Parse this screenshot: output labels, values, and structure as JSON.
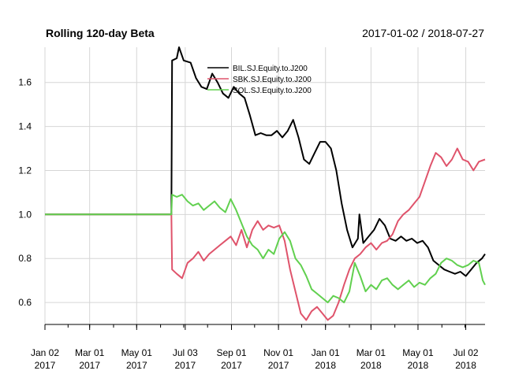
{
  "chart_data": {
    "type": "line",
    "title": "Rolling 120-day Beta",
    "subtitle": "2017-01-02 / 2018-07-27",
    "xlim": [
      "2017-01-02",
      "2018-07-27"
    ],
    "ylim": [
      0.5,
      1.76
    ],
    "yticks": [
      0.6,
      0.8,
      1.0,
      1.2,
      1.4,
      1.6
    ],
    "ytick_labels": [
      "0.6",
      "0.8",
      "1.0",
      "1.2",
      "1.4",
      "1.6"
    ],
    "xticks": [
      {
        "date": "2017-01-02",
        "label": [
          "Jan 02",
          "2017"
        ]
      },
      {
        "date": "2017-03-01",
        "label": [
          "Mar 01",
          "2017"
        ]
      },
      {
        "date": "2017-05-01",
        "label": [
          "May 01",
          "2017"
        ]
      },
      {
        "date": "2017-07-03",
        "label": [
          "Jul 03",
          "2017"
        ]
      },
      {
        "date": "2017-09-01",
        "label": [
          "Sep 01",
          "2017"
        ]
      },
      {
        "date": "2017-11-01",
        "label": [
          "Nov 01",
          "2017"
        ]
      },
      {
        "date": "2018-01-01",
        "label": [
          "Jan 01",
          "2018"
        ]
      },
      {
        "date": "2018-03-01",
        "label": [
          "Mar 01",
          "2018"
        ]
      },
      {
        "date": "2018-05-01",
        "label": [
          "May 01",
          "2018"
        ]
      },
      {
        "date": "2018-07-02",
        "label": [
          "Jul 02",
          "2018"
        ]
      }
    ],
    "grid": true,
    "legend_position": "top-center",
    "series": [
      {
        "name": "BIL.SJ.Equity.to.J200",
        "color": "#000000",
        "points": [
          [
            "2017-01-02",
            1.0
          ],
          [
            "2017-06-15",
            1.0
          ],
          [
            "2017-06-16",
            1.7
          ],
          [
            "2017-06-22",
            1.71
          ],
          [
            "2017-06-25",
            1.76
          ],
          [
            "2017-07-01",
            1.7
          ],
          [
            "2017-07-10",
            1.69
          ],
          [
            "2017-07-17",
            1.62
          ],
          [
            "2017-07-24",
            1.58
          ],
          [
            "2017-07-31",
            1.57
          ],
          [
            "2017-08-07",
            1.64
          ],
          [
            "2017-08-14",
            1.6
          ],
          [
            "2017-08-21",
            1.55
          ],
          [
            "2017-08-28",
            1.53
          ],
          [
            "2017-09-04",
            1.58
          ],
          [
            "2017-09-11",
            1.55
          ],
          [
            "2017-09-18",
            1.53
          ],
          [
            "2017-09-25",
            1.45
          ],
          [
            "2017-10-02",
            1.36
          ],
          [
            "2017-10-09",
            1.37
          ],
          [
            "2017-10-16",
            1.36
          ],
          [
            "2017-10-23",
            1.36
          ],
          [
            "2017-10-30",
            1.38
          ],
          [
            "2017-11-06",
            1.35
          ],
          [
            "2017-11-13",
            1.38
          ],
          [
            "2017-11-20",
            1.43
          ],
          [
            "2017-11-27",
            1.35
          ],
          [
            "2017-12-04",
            1.25
          ],
          [
            "2017-12-11",
            1.23
          ],
          [
            "2017-12-18",
            1.28
          ],
          [
            "2017-12-25",
            1.33
          ],
          [
            "2018-01-01",
            1.33
          ],
          [
            "2018-01-08",
            1.3
          ],
          [
            "2018-01-15",
            1.2
          ],
          [
            "2018-01-22",
            1.05
          ],
          [
            "2018-01-29",
            0.93
          ],
          [
            "2018-02-05",
            0.85
          ],
          [
            "2018-02-12",
            0.89
          ],
          [
            "2018-02-14",
            1.0
          ],
          [
            "2018-02-19",
            0.87
          ],
          [
            "2018-02-26",
            0.9
          ],
          [
            "2018-03-05",
            0.93
          ],
          [
            "2018-03-12",
            0.98
          ],
          [
            "2018-03-19",
            0.95
          ],
          [
            "2018-03-26",
            0.89
          ],
          [
            "2018-04-02",
            0.88
          ],
          [
            "2018-04-09",
            0.9
          ],
          [
            "2018-04-16",
            0.88
          ],
          [
            "2018-04-23",
            0.89
          ],
          [
            "2018-04-30",
            0.87
          ],
          [
            "2018-05-07",
            0.88
          ],
          [
            "2018-05-14",
            0.85
          ],
          [
            "2018-05-21",
            0.79
          ],
          [
            "2018-05-28",
            0.77
          ],
          [
            "2018-06-04",
            0.75
          ],
          [
            "2018-06-11",
            0.74
          ],
          [
            "2018-06-18",
            0.73
          ],
          [
            "2018-06-25",
            0.74
          ],
          [
            "2018-07-02",
            0.72
          ],
          [
            "2018-07-09",
            0.75
          ],
          [
            "2018-07-16",
            0.78
          ],
          [
            "2018-07-23",
            0.8
          ],
          [
            "2018-07-27",
            0.82
          ]
        ]
      },
      {
        "name": "SBK.SJ.Equity.to.J200",
        "color": "#DF536B",
        "points": [
          [
            "2017-01-02",
            1.0
          ],
          [
            "2017-06-15",
            1.0
          ],
          [
            "2017-06-16",
            0.75
          ],
          [
            "2017-06-22",
            0.73
          ],
          [
            "2017-06-29",
            0.71
          ],
          [
            "2017-07-06",
            0.78
          ],
          [
            "2017-07-13",
            0.8
          ],
          [
            "2017-07-20",
            0.83
          ],
          [
            "2017-07-27",
            0.79
          ],
          [
            "2017-08-03",
            0.82
          ],
          [
            "2017-08-10",
            0.84
          ],
          [
            "2017-08-17",
            0.86
          ],
          [
            "2017-08-24",
            0.88
          ],
          [
            "2017-08-31",
            0.9
          ],
          [
            "2017-09-07",
            0.86
          ],
          [
            "2017-09-14",
            0.93
          ],
          [
            "2017-09-21",
            0.85
          ],
          [
            "2017-09-28",
            0.93
          ],
          [
            "2017-10-05",
            0.97
          ],
          [
            "2017-10-12",
            0.93
          ],
          [
            "2017-10-19",
            0.95
          ],
          [
            "2017-10-26",
            0.94
          ],
          [
            "2017-11-02",
            0.95
          ],
          [
            "2017-11-09",
            0.88
          ],
          [
            "2017-11-16",
            0.75
          ],
          [
            "2017-11-23",
            0.65
          ],
          [
            "2017-11-30",
            0.55
          ],
          [
            "2017-12-07",
            0.52
          ],
          [
            "2017-12-14",
            0.56
          ],
          [
            "2017-12-21",
            0.58
          ],
          [
            "2017-12-28",
            0.55
          ],
          [
            "2018-01-04",
            0.52
          ],
          [
            "2018-01-11",
            0.54
          ],
          [
            "2018-01-18",
            0.6
          ],
          [
            "2018-01-25",
            0.68
          ],
          [
            "2018-02-01",
            0.75
          ],
          [
            "2018-02-08",
            0.8
          ],
          [
            "2018-02-15",
            0.82
          ],
          [
            "2018-02-22",
            0.85
          ],
          [
            "2018-03-01",
            0.87
          ],
          [
            "2018-03-08",
            0.84
          ],
          [
            "2018-03-15",
            0.87
          ],
          [
            "2018-03-22",
            0.88
          ],
          [
            "2018-03-29",
            0.91
          ],
          [
            "2018-04-05",
            0.97
          ],
          [
            "2018-04-12",
            1.0
          ],
          [
            "2018-04-19",
            1.02
          ],
          [
            "2018-04-26",
            1.05
          ],
          [
            "2018-05-03",
            1.08
          ],
          [
            "2018-05-10",
            1.15
          ],
          [
            "2018-05-17",
            1.22
          ],
          [
            "2018-05-24",
            1.28
          ],
          [
            "2018-05-31",
            1.26
          ],
          [
            "2018-06-07",
            1.22
          ],
          [
            "2018-06-14",
            1.25
          ],
          [
            "2018-06-21",
            1.3
          ],
          [
            "2018-06-28",
            1.25
          ],
          [
            "2018-07-05",
            1.24
          ],
          [
            "2018-07-12",
            1.2
          ],
          [
            "2018-07-19",
            1.24
          ],
          [
            "2018-07-27",
            1.25
          ]
        ]
      },
      {
        "name": "SOL.SJ.Equity.to.J200",
        "color": "#61D04F",
        "points": [
          [
            "2017-01-02",
            1.0
          ],
          [
            "2017-06-15",
            1.0
          ],
          [
            "2017-06-16",
            1.09
          ],
          [
            "2017-06-22",
            1.08
          ],
          [
            "2017-06-29",
            1.09
          ],
          [
            "2017-07-06",
            1.06
          ],
          [
            "2017-07-13",
            1.04
          ],
          [
            "2017-07-20",
            1.05
          ],
          [
            "2017-07-27",
            1.02
          ],
          [
            "2017-08-03",
            1.04
          ],
          [
            "2017-08-10",
            1.06
          ],
          [
            "2017-08-17",
            1.03
          ],
          [
            "2017-08-24",
            1.01
          ],
          [
            "2017-08-31",
            1.07
          ],
          [
            "2017-09-07",
            1.02
          ],
          [
            "2017-09-14",
            0.96
          ],
          [
            "2017-09-21",
            0.9
          ],
          [
            "2017-09-28",
            0.86
          ],
          [
            "2017-10-05",
            0.84
          ],
          [
            "2017-10-12",
            0.8
          ],
          [
            "2017-10-19",
            0.84
          ],
          [
            "2017-10-26",
            0.82
          ],
          [
            "2017-11-02",
            0.89
          ],
          [
            "2017-11-09",
            0.92
          ],
          [
            "2017-11-16",
            0.88
          ],
          [
            "2017-11-23",
            0.8
          ],
          [
            "2017-11-30",
            0.77
          ],
          [
            "2017-12-07",
            0.72
          ],
          [
            "2017-12-14",
            0.66
          ],
          [
            "2017-12-21",
            0.64
          ],
          [
            "2017-12-28",
            0.62
          ],
          [
            "2018-01-04",
            0.6
          ],
          [
            "2018-01-11",
            0.63
          ],
          [
            "2018-01-18",
            0.62
          ],
          [
            "2018-01-25",
            0.6
          ],
          [
            "2018-02-01",
            0.65
          ],
          [
            "2018-02-08",
            0.78
          ],
          [
            "2018-02-15",
            0.72
          ],
          [
            "2018-02-22",
            0.65
          ],
          [
            "2018-03-01",
            0.68
          ],
          [
            "2018-03-08",
            0.66
          ],
          [
            "2018-03-15",
            0.7
          ],
          [
            "2018-03-22",
            0.71
          ],
          [
            "2018-03-29",
            0.68
          ],
          [
            "2018-04-05",
            0.66
          ],
          [
            "2018-04-12",
            0.68
          ],
          [
            "2018-04-19",
            0.7
          ],
          [
            "2018-04-26",
            0.67
          ],
          [
            "2018-05-03",
            0.69
          ],
          [
            "2018-05-10",
            0.68
          ],
          [
            "2018-05-17",
            0.71
          ],
          [
            "2018-05-24",
            0.73
          ],
          [
            "2018-05-31",
            0.78
          ],
          [
            "2018-06-07",
            0.8
          ],
          [
            "2018-06-14",
            0.79
          ],
          [
            "2018-06-21",
            0.77
          ],
          [
            "2018-06-28",
            0.76
          ],
          [
            "2018-07-05",
            0.77
          ],
          [
            "2018-07-12",
            0.79
          ],
          [
            "2018-07-19",
            0.78
          ],
          [
            "2018-07-24",
            0.7
          ],
          [
            "2018-07-27",
            0.68
          ]
        ]
      }
    ]
  }
}
